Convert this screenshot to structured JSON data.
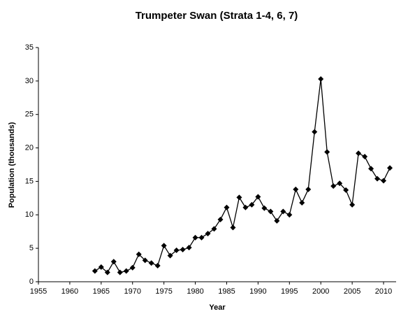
{
  "chart_data": {
    "type": "line",
    "title": "Trumpeter Swan (Strata 1-4, 6, 7)",
    "x_label": "Year",
    "y_label": "Population (thousands)",
    "x": [
      1964,
      1965,
      1966,
      1967,
      1968,
      1969,
      1970,
      1971,
      1972,
      1973,
      1974,
      1975,
      1976,
      1977,
      1978,
      1979,
      1980,
      1981,
      1982,
      1983,
      1984,
      1985,
      1986,
      1987,
      1988,
      1989,
      1990,
      1991,
      1992,
      1993,
      1994,
      1995,
      1996,
      1997,
      1998,
      1999,
      2000,
      2001,
      2002,
      2003,
      2004,
      2005,
      2006,
      2007,
      2008,
      2009,
      2010,
      2011
    ],
    "series": [
      {
        "name": "Trumpeter Swan",
        "color": "#000000",
        "values": [
          1.6,
          2.2,
          1.4,
          3.0,
          1.4,
          1.6,
          2.1,
          4.1,
          3.2,
          2.8,
          2.4,
          5.4,
          3.9,
          4.7,
          4.8,
          5.1,
          6.6,
          6.6,
          7.2,
          7.9,
          9.3,
          11.1,
          8.1,
          12.6,
          11.1,
          11.5,
          12.7,
          11.0,
          10.5,
          9.1,
          10.5,
          10.0,
          13.8,
          11.8,
          13.8,
          22.4,
          30.3,
          19.4,
          14.3,
          14.7,
          13.7,
          11.5,
          19.2,
          18.7,
          16.9,
          15.4,
          15.1,
          17.0
        ]
      }
    ],
    "xlim": [
      1955,
      2012
    ],
    "xticks": [
      1955,
      1960,
      1965,
      1970,
      1975,
      1980,
      1985,
      1990,
      1995,
      2000,
      2005,
      2010
    ],
    "ylim": [
      0,
      35
    ],
    "yticks": [
      0,
      5,
      10,
      15,
      20,
      25,
      30,
      35
    ],
    "grid": false
  }
}
